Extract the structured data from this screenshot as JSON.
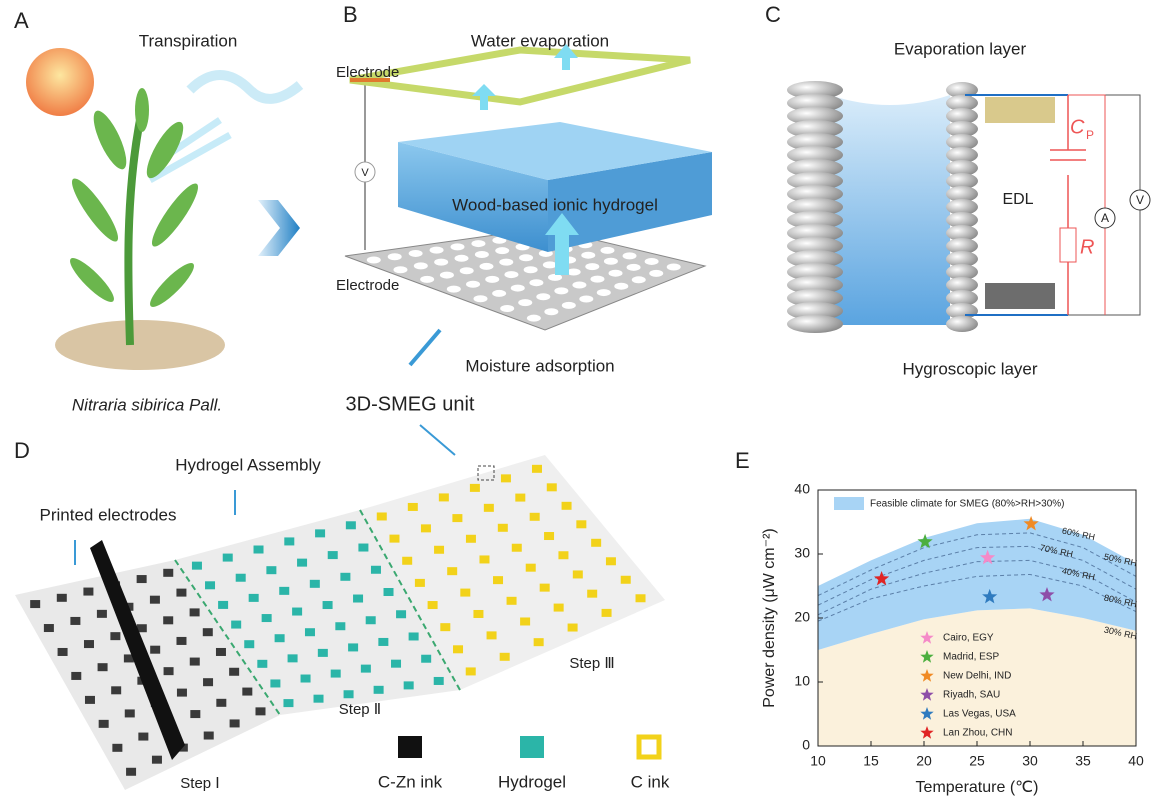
{
  "panels": {
    "a": {
      "letter": "A",
      "transpiration": "Transpiration",
      "species": "Nitraria sibirica Pall."
    },
    "b": {
      "letter": "B",
      "evaporation": "Water evaporation",
      "electrode_top": "Electrode",
      "voltmeter": "V",
      "hydrogel": "Wood-based ionic hydrogel",
      "electrode_bottom": "Electrode",
      "adsorption": "Moisture adsorption"
    },
    "c": {
      "letter": "C",
      "evaporation_layer": "Evaporation layer",
      "cp_main": "C",
      "cp_sub": "P",
      "edl": "EDL",
      "resistor": "R",
      "ammeter": "A",
      "voltmeter": "V",
      "hygroscopic_layer": "Hygroscopic layer"
    },
    "unit": "3D-SMEG unit",
    "d": {
      "letter": "D",
      "hydrogel_assembly": "Hydrogel Assembly",
      "printed_electrodes": "Printed electrodes",
      "step1": "Step Ⅰ",
      "step2": "Step Ⅱ",
      "step3": "Step Ⅲ",
      "legend": [
        "C-Zn ink",
        "Hydrogel",
        "C ink"
      ]
    },
    "e": {
      "letter": "E"
    }
  },
  "chart_data": {
    "type": "scatter",
    "x_label": "Temperature (℃)",
    "y_label": "Power density (μW cm⁻²)",
    "xlim": [
      10,
      40
    ],
    "xticks": [
      10,
      15,
      20,
      25,
      30,
      35,
      40
    ],
    "ylim": [
      0,
      40
    ],
    "yticks": [
      0,
      10,
      20,
      30,
      40
    ],
    "band": {
      "name": "Feasible climate for SMEG (80%>RH>30%)",
      "color": "#a8d4f5",
      "x": [
        10,
        15,
        20,
        25,
        30,
        35,
        40
      ],
      "upper": [
        25,
        29,
        32.5,
        34.8,
        35.5,
        33,
        28.5
      ],
      "lower": [
        15,
        17.5,
        19.8,
        21.2,
        21.5,
        20,
        18
      ]
    },
    "below_color": "#fbf1dc",
    "curve_x": [
      10,
      15,
      20,
      25,
      30,
      35,
      40
    ],
    "curves": [
      {
        "values": [
          23.5,
          27.5,
          31,
          33,
          33.3,
          31,
          26.5
        ]
      },
      {
        "values": [
          22,
          26,
          29,
          31,
          31.2,
          29,
          24.5
        ]
      },
      {
        "values": [
          20.5,
          24.5,
          27,
          28.8,
          29,
          27,
          22.5
        ]
      },
      {
        "values": [
          19.5,
          23,
          25,
          26.5,
          26.8,
          25,
          21
        ]
      }
    ],
    "rh_labels": [
      "60% RH",
      "50% RH",
      "70% RH",
      "40% RH",
      "80% RH",
      "30% RH"
    ],
    "series": [
      {
        "name": "Cairo, EGY",
        "color": "#f58ac8",
        "x": [
          26
        ],
        "values": [
          29.4
        ]
      },
      {
        "name": "Madrid, ESP",
        "color": "#4caf3f",
        "x": [
          20.1
        ],
        "values": [
          31.9
        ]
      },
      {
        "name": "New Delhi, IND",
        "color": "#f08a24",
        "x": [
          30.1
        ],
        "values": [
          34.7
        ]
      },
      {
        "name": "Riyadh, SAU",
        "color": "#8e4ea8",
        "x": [
          31.6
        ],
        "values": [
          23.6
        ]
      },
      {
        "name": "Las Vegas, USA",
        "color": "#2f7bbf",
        "x": [
          26.2
        ],
        "values": [
          23.3
        ]
      },
      {
        "name": "Lan Zhou, CHN",
        "color": "#e02424",
        "x": [
          16
        ],
        "values": [
          26.1
        ]
      }
    ]
  }
}
